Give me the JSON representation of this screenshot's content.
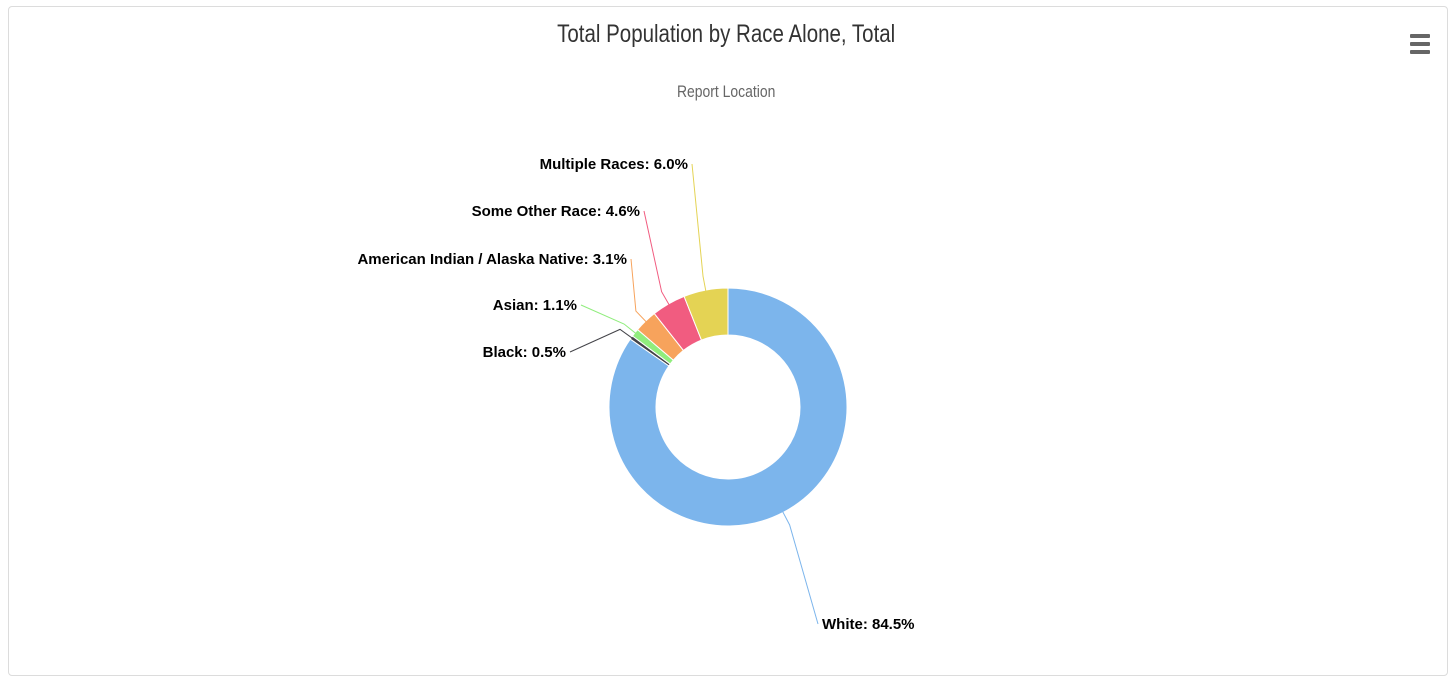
{
  "chart_data": {
    "type": "pie",
    "title": "Total Population by Race Alone, Total",
    "subtitle": "Report Location",
    "categories": [
      "White",
      "Black",
      "Asian",
      "American Indian / Alaska Native",
      "Some Other Race",
      "Multiple Races"
    ],
    "values": [
      84.5,
      0.5,
      1.1,
      3.1,
      4.6,
      6.0
    ],
    "labels": [
      "White: 84.5%",
      "Black: 0.5%",
      "Asian: 1.1%",
      "American Indian / Alaska Native: 3.1%",
      "Some Other Race: 4.6%",
      "Multiple Races: 6.0%"
    ],
    "colors": [
      "#7cb5ec",
      "#434348",
      "#90ed7d",
      "#f7a35c",
      "#f15c80",
      "#e4d354"
    ],
    "unit": "%",
    "donut": true,
    "legend": "none"
  },
  "menu": {
    "icon": "hamburger-menu-icon"
  }
}
